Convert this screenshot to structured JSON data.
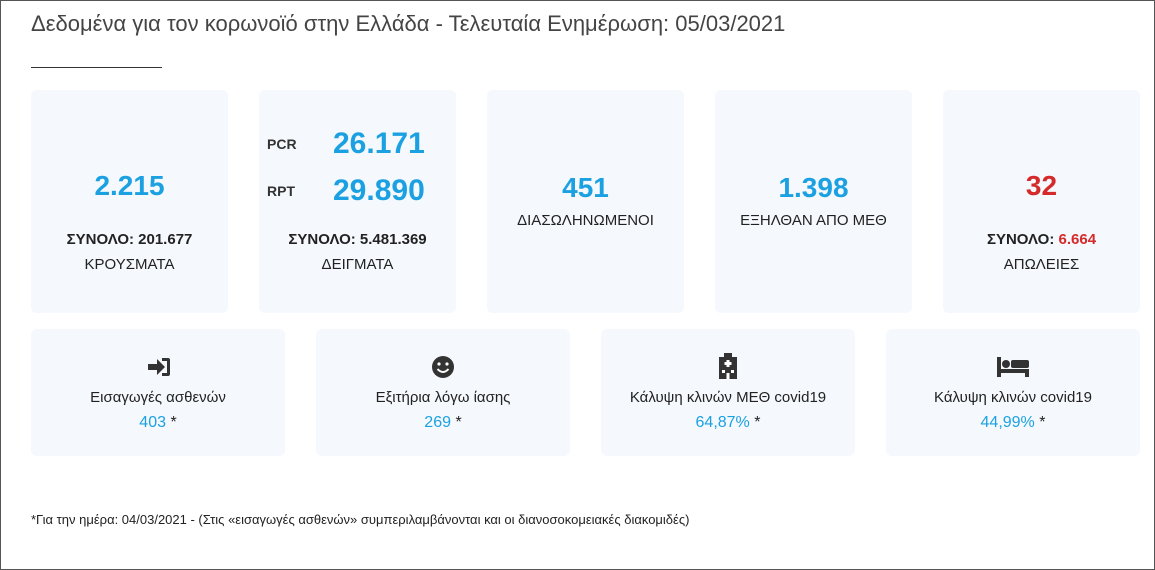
{
  "header": {
    "title": "Δεδομένα για τον κορωνοϊό στην Ελλάδα - Τελευταία Ενημέρωση: 05/03/2021"
  },
  "cards": [
    {
      "value": "2.215",
      "total_label": "ΣΥΝΟΛΟ:",
      "total": "201.677",
      "label": "ΚΡΟΥΣΜΑΤΑ"
    },
    {
      "rows": [
        {
          "name": "PCR",
          "value": "26.171"
        },
        {
          "name": "RPT",
          "value": "29.890"
        }
      ],
      "total_label": "ΣΥΝΟΛΟ:",
      "total": "5.481.369",
      "label": "ΔΕΙΓΜΑΤΑ"
    },
    {
      "value": "451",
      "label": "ΔΙΑΣΩΛΗΝΩΜΕΝΟΙ"
    },
    {
      "value": "1.398",
      "label": "ΕΞΗΛΘΑΝ ΑΠΟ ΜΕΘ"
    },
    {
      "value": "32",
      "total_label": "ΣΥΝΟΛΟ:",
      "total": "6.664",
      "label": "ΑΠΩΛΕΙΕΣ"
    }
  ],
  "stats": [
    {
      "label": "Εισαγωγές ασθενών",
      "value": "403",
      "mark": "*"
    },
    {
      "label": "Εξιτήρια λόγω ίασης",
      "value": "269",
      "mark": "*"
    },
    {
      "label": "Κάλυψη κλινών ΜΕΘ covid19",
      "value": "64,87%",
      "mark": "*"
    },
    {
      "label": "Κάλυψη κλινών covid19",
      "value": "44,99%",
      "mark": "*"
    }
  ],
  "footnote": "*Για την ημέρα: 04/03/2021 - (Στις «εισαγωγές ασθενών» συμπεριλαμβάνονται και οι διανοσοκομειακές διακομιδές)"
}
